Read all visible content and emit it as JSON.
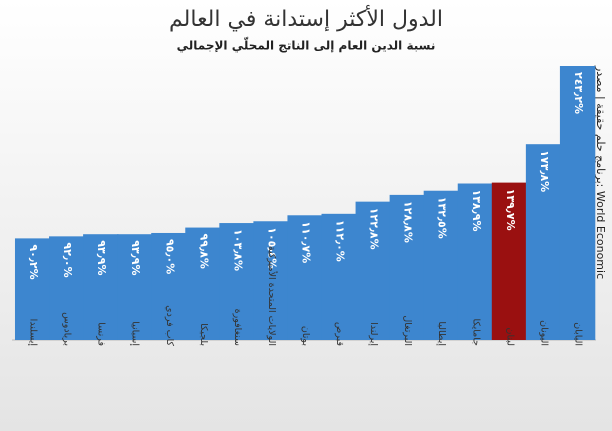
{
  "chart_data": {
    "type": "bar",
    "title": "الدول الأكثر إستدانة في العالم",
    "subtitle": "نسبة الدين العام إلى الناتج المحلّي الإجمالي",
    "source": "برنامج حلم حقيقة | مصدر: World Economic",
    "categories": [
      "إيسلندا",
      "بربادوس",
      "فرنسا",
      "إسبانيا",
      "كاب فردي",
      "بلجيكا",
      "سنغافورة",
      "الولايات المتحدة الأميركية",
      "بوتان",
      "قبرص",
      "إيرلندا",
      "البرتغال",
      "إيطاليا",
      "جامايكا",
      "لبنان",
      "اليونان",
      "اليابان"
    ],
    "values": [
      90.2,
      92.0,
      93.9,
      93.9,
      95.0,
      99.8,
      103.8,
      105.4,
      110.7,
      112.0,
      122.8,
      128.8,
      132.5,
      138.9,
      139.7,
      173.8,
      243.2
    ],
    "value_labels": [
      "٩٠٫٢%",
      "٩٢٫٠%",
      "٩٣٫٩%",
      "٩٣٫٩%",
      "٩٥٫٠%",
      "٩٩٫٨%",
      "١٠٣٫٨%",
      "١٠٥٫٤%",
      "١١٠٫٧%",
      "١١٢٫٠%",
      "١٢٢٫٨%",
      "١٢٨٫٨%",
      "١٣٢٫٥%",
      "١٣٨٫٩%",
      "١٣٩٫٧%",
      "١٧٣٫٨%",
      "٢٤٣٫٢%"
    ],
    "colors": [
      "#3d86cf",
      "#3d86cf",
      "#3d86cf",
      "#3d86cf",
      "#3d86cf",
      "#3d86cf",
      "#3d86cf",
      "#3d86cf",
      "#3d86cf",
      "#3d86cf",
      "#3d86cf",
      "#3d86cf",
      "#3d86cf",
      "#3d86cf",
      "#9a1010",
      "#3d86cf",
      "#3d86cf"
    ]
  }
}
